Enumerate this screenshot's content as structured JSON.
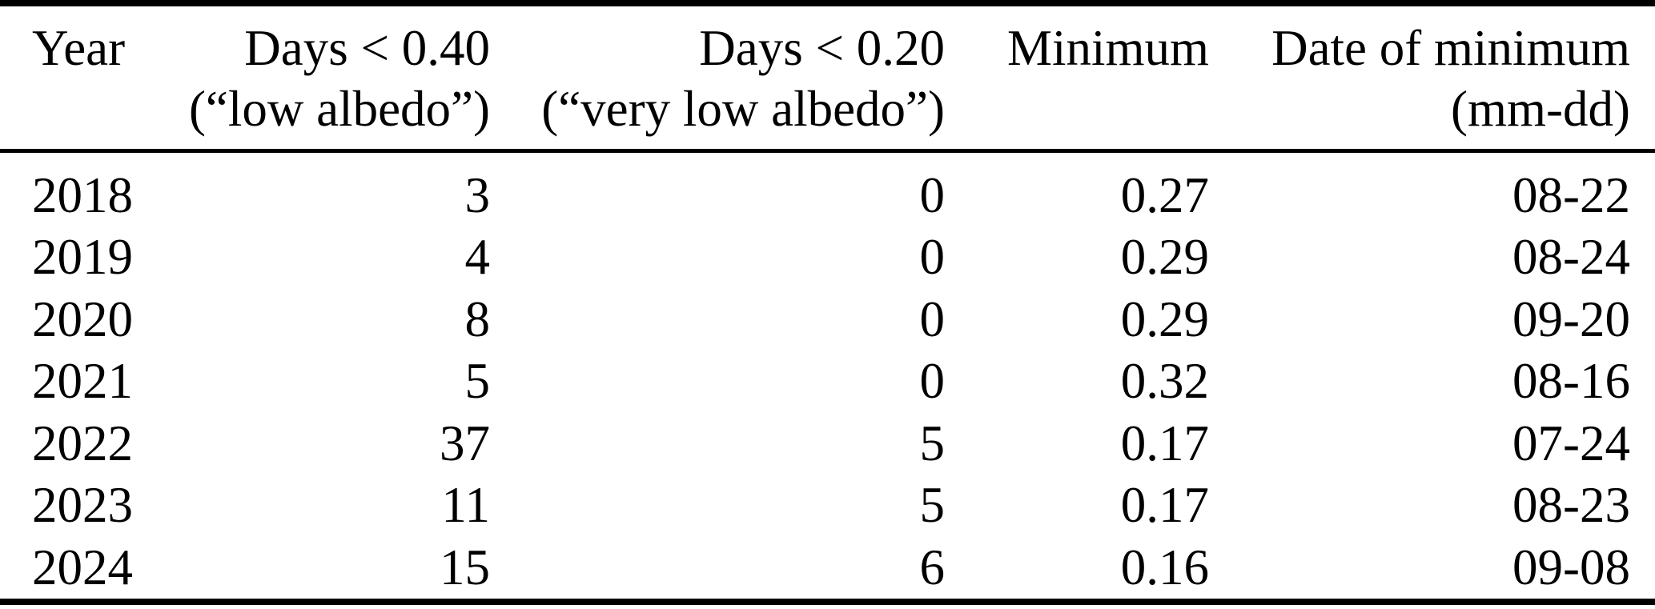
{
  "colors": {
    "background": "#ffffff",
    "text": "#000000",
    "rule": "#000000"
  },
  "table": {
    "header": {
      "columns": [
        {
          "line1": "Year",
          "line2": ""
        },
        {
          "line1": "Days < 0.40",
          "line2": "(“low albedo”)"
        },
        {
          "line1": "Days < 0.20",
          "line2": "(“very low albedo”)"
        },
        {
          "line1": "Minimum",
          "line2": ""
        },
        {
          "line1": "Date of minimum",
          "line2": "(mm-dd)"
        }
      ]
    },
    "rows": [
      [
        "2018",
        "3",
        "0",
        "0.27",
        "08-22"
      ],
      [
        "2019",
        "4",
        "0",
        "0.29",
        "08-24"
      ],
      [
        "2020",
        "8",
        "0",
        "0.29",
        "09-20"
      ],
      [
        "2021",
        "5",
        "0",
        "0.32",
        "08-16"
      ],
      [
        "2022",
        "37",
        "5",
        "0.17",
        "07-24"
      ],
      [
        "2023",
        "11",
        "5",
        "0.17",
        "08-23"
      ],
      [
        "2024",
        "15",
        "6",
        "0.16",
        "09-08"
      ]
    ]
  },
  "chart_data": {
    "type": "table",
    "columns": [
      "Year",
      "Days < 0.40 (“low albedo”)",
      "Days < 0.20 (“very low albedo”)",
      "Minimum",
      "Date of minimum (mm-dd)"
    ],
    "rows": [
      [
        "2018",
        3,
        0,
        0.27,
        "08-22"
      ],
      [
        "2019",
        4,
        0,
        0.29,
        "08-24"
      ],
      [
        "2020",
        8,
        0,
        0.29,
        "09-20"
      ],
      [
        "2021",
        5,
        0,
        0.32,
        "08-16"
      ],
      [
        "2022",
        37,
        5,
        0.17,
        "07-24"
      ],
      [
        "2023",
        11,
        5,
        0.17,
        "08-23"
      ],
      [
        "2024",
        15,
        6,
        0.16,
        "09-08"
      ]
    ]
  }
}
